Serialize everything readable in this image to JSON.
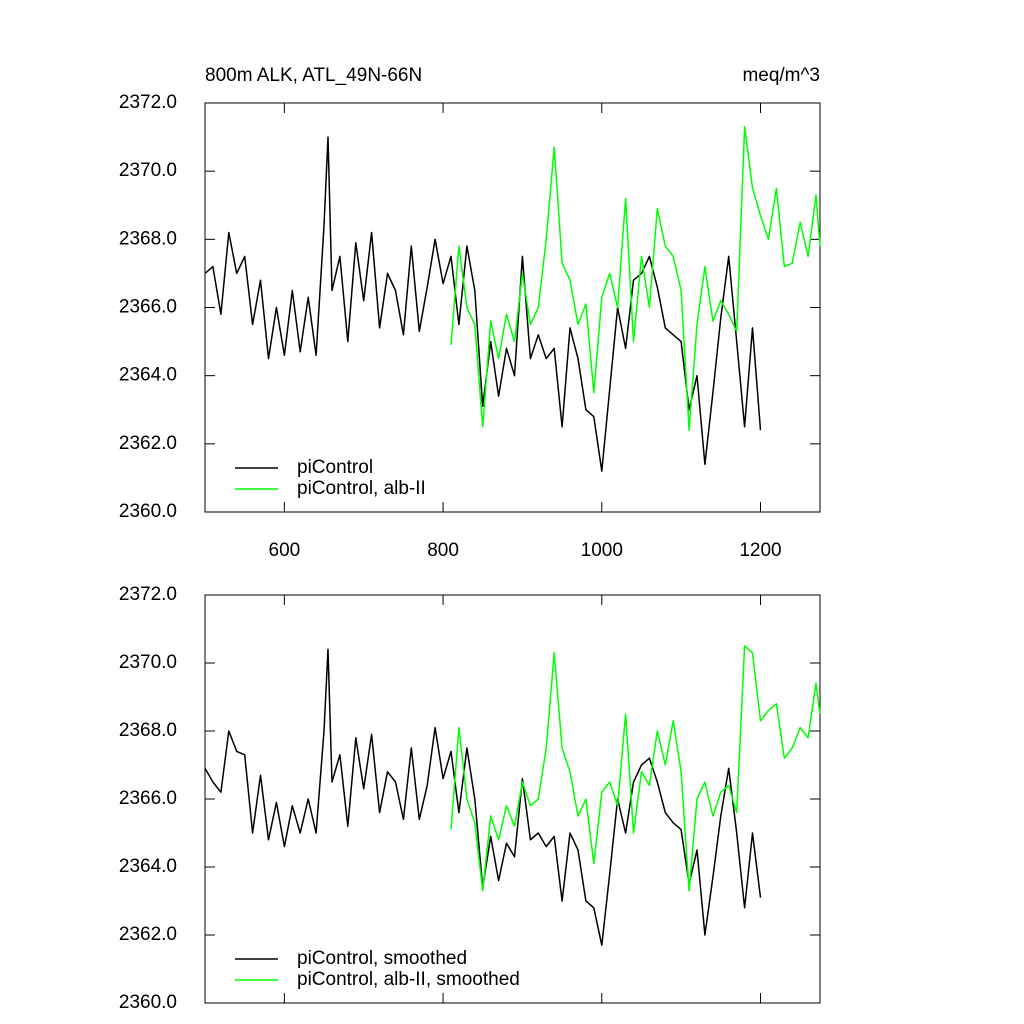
{
  "chart_data": [
    {
      "type": "line",
      "title": "800m ALK, ATL_49N-66N",
      "units": "meq/m^3",
      "xlim": [
        500,
        1275
      ],
      "xticks": [
        600,
        800,
        1000,
        1200
      ],
      "show_xtick_labels": true,
      "ylim": [
        2360,
        2372
      ],
      "yticks": [
        {
          "value": 2360,
          "label": "2360.0"
        },
        {
          "value": 2362,
          "label": "2362.0"
        },
        {
          "value": 2364,
          "label": "2364.0"
        },
        {
          "value": 2366,
          "label": "2366.0"
        },
        {
          "value": 2368,
          "label": "2368.0"
        },
        {
          "value": 2370,
          "label": "2370.0"
        },
        {
          "value": 2372,
          "label": "2372.0"
        }
      ],
      "legend": "lower left",
      "series": [
        {
          "name": "piControl",
          "color": "#000000",
          "x": [
            500,
            510,
            520,
            530,
            540,
            550,
            560,
            570,
            580,
            590,
            600,
            610,
            620,
            630,
            640,
            650,
            655,
            660,
            670,
            680,
            690,
            700,
            710,
            720,
            730,
            740,
            750,
            760,
            770,
            780,
            790,
            800,
            810,
            820,
            830,
            840,
            850,
            860,
            870,
            880,
            890,
            900,
            910,
            920,
            930,
            940,
            950,
            960,
            970,
            980,
            990,
            1000,
            1010,
            1020,
            1030,
            1040,
            1050,
            1060,
            1070,
            1080,
            1090,
            1100,
            1110,
            1120,
            1130,
            1140,
            1150,
            1160,
            1170,
            1180,
            1190,
            1200
          ],
          "values": [
            2367.0,
            2367.2,
            2365.8,
            2368.2,
            2367.0,
            2367.5,
            2365.5,
            2366.8,
            2364.5,
            2366.0,
            2364.6,
            2366.5,
            2364.7,
            2366.3,
            2364.6,
            2368.4,
            2371.0,
            2366.5,
            2367.5,
            2365.0,
            2367.9,
            2366.2,
            2368.2,
            2365.4,
            2367.0,
            2366.5,
            2365.2,
            2367.8,
            2365.3,
            2366.6,
            2368.0,
            2366.7,
            2367.5,
            2365.5,
            2367.8,
            2366.5,
            2363.1,
            2365.0,
            2363.4,
            2364.8,
            2364.0,
            2367.5,
            2364.5,
            2365.2,
            2364.5,
            2364.8,
            2362.5,
            2365.4,
            2364.5,
            2363.0,
            2362.8,
            2361.2,
            2363.6,
            2366.0,
            2364.8,
            2366.8,
            2367.0,
            2367.5,
            2366.6,
            2365.4,
            2365.2,
            2365.0,
            2363.0,
            2364.0,
            2361.4,
            2363.5,
            2365.7,
            2367.5,
            2365.0,
            2362.5,
            2365.4,
            2362.4
          ]
        },
        {
          "name": "piControl, alb-II",
          "color": "#00ff00",
          "x": [
            810,
            820,
            830,
            840,
            850,
            860,
            870,
            880,
            890,
            900,
            910,
            920,
            930,
            940,
            950,
            960,
            970,
            980,
            990,
            1000,
            1010,
            1020,
            1030,
            1040,
            1050,
            1060,
            1070,
            1080,
            1090,
            1100,
            1110,
            1120,
            1130,
            1140,
            1150,
            1160,
            1170,
            1180,
            1190,
            1200,
            1210,
            1220,
            1230,
            1240,
            1250,
            1260,
            1270,
            1275
          ],
          "values": [
            2364.9,
            2367.8,
            2366.0,
            2365.5,
            2362.5,
            2365.6,
            2364.5,
            2365.8,
            2365.0,
            2367.0,
            2365.5,
            2366.0,
            2368.0,
            2370.7,
            2367.3,
            2366.8,
            2365.5,
            2366.1,
            2363.5,
            2366.3,
            2367.0,
            2366.0,
            2369.2,
            2365.0,
            2367.5,
            2366.0,
            2368.9,
            2367.8,
            2367.5,
            2366.5,
            2362.4,
            2365.5,
            2367.2,
            2365.6,
            2366.2,
            2365.8,
            2365.3,
            2371.3,
            2369.5,
            2368.7,
            2368.0,
            2369.5,
            2367.2,
            2367.3,
            2368.5,
            2367.5,
            2369.3,
            2367.8
          ]
        }
      ]
    },
    {
      "type": "line",
      "xlim": [
        500,
        1275
      ],
      "xticks": [
        600,
        800,
        1000,
        1200
      ],
      "show_xtick_labels": false,
      "ylim": [
        2360,
        2372
      ],
      "yticks": [
        {
          "value": 2360,
          "label": "2360.0"
        },
        {
          "value": 2362,
          "label": "2362.0"
        },
        {
          "value": 2364,
          "label": "2364.0"
        },
        {
          "value": 2366,
          "label": "2366.0"
        },
        {
          "value": 2368,
          "label": "2368.0"
        },
        {
          "value": 2370,
          "label": "2370.0"
        },
        {
          "value": 2372,
          "label": "2372.0"
        }
      ],
      "legend": "lower left",
      "series": [
        {
          "name": "piControl, smoothed",
          "color": "#000000",
          "x": [
            500,
            510,
            520,
            530,
            540,
            550,
            560,
            570,
            580,
            590,
            600,
            610,
            620,
            630,
            640,
            650,
            655,
            660,
            670,
            680,
            690,
            700,
            710,
            720,
            730,
            740,
            750,
            760,
            770,
            780,
            790,
            800,
            810,
            820,
            830,
            840,
            850,
            860,
            870,
            880,
            890,
            900,
            910,
            920,
            930,
            940,
            950,
            960,
            970,
            980,
            990,
            1000,
            1010,
            1020,
            1030,
            1040,
            1050,
            1060,
            1070,
            1080,
            1090,
            1100,
            1110,
            1120,
            1130,
            1140,
            1150,
            1160,
            1170,
            1180,
            1190,
            1200
          ],
          "values": [
            2366.9,
            2366.5,
            2366.2,
            2368.0,
            2367.4,
            2367.3,
            2365.0,
            2366.7,
            2364.8,
            2365.9,
            2364.6,
            2365.8,
            2365.0,
            2366.0,
            2365.0,
            2368.0,
            2370.4,
            2366.5,
            2367.3,
            2365.2,
            2367.8,
            2366.3,
            2367.9,
            2365.6,
            2366.8,
            2366.5,
            2365.4,
            2367.5,
            2365.4,
            2366.4,
            2368.1,
            2366.6,
            2367.4,
            2365.6,
            2367.5,
            2366.0,
            2363.4,
            2364.9,
            2363.6,
            2364.7,
            2364.3,
            2366.6,
            2364.8,
            2365.0,
            2364.6,
            2364.9,
            2363.0,
            2365.0,
            2364.5,
            2363.0,
            2362.8,
            2361.7,
            2363.8,
            2366.0,
            2365.0,
            2366.5,
            2367.0,
            2367.2,
            2366.5,
            2365.6,
            2365.3,
            2365.1,
            2363.5,
            2364.5,
            2362.0,
            2363.7,
            2365.5,
            2366.9,
            2365.0,
            2362.8,
            2365.0,
            2363.1
          ]
        },
        {
          "name": "piControl, alb-II, smoothed",
          "color": "#00ff00",
          "x": [
            810,
            820,
            830,
            840,
            850,
            860,
            870,
            880,
            890,
            900,
            910,
            920,
            930,
            940,
            950,
            960,
            970,
            980,
            990,
            1000,
            1010,
            1020,
            1030,
            1040,
            1050,
            1060,
            1070,
            1080,
            1090,
            1100,
            1110,
            1120,
            1130,
            1140,
            1150,
            1160,
            1170,
            1180,
            1190,
            1200,
            1210,
            1220,
            1230,
            1240,
            1250,
            1260,
            1270,
            1275
          ],
          "values": [
            2365.1,
            2368.1,
            2366.0,
            2365.3,
            2363.3,
            2365.5,
            2364.8,
            2365.8,
            2365.2,
            2366.5,
            2365.8,
            2366.0,
            2367.5,
            2370.3,
            2367.5,
            2366.8,
            2365.5,
            2366.0,
            2364.1,
            2366.2,
            2366.5,
            2365.8,
            2368.5,
            2365.0,
            2366.8,
            2366.4,
            2368.0,
            2367.0,
            2368.3,
            2366.8,
            2363.3,
            2366.0,
            2366.5,
            2365.5,
            2366.2,
            2366.4,
            2365.6,
            2370.5,
            2370.3,
            2368.3,
            2368.6,
            2368.8,
            2367.2,
            2367.5,
            2368.1,
            2367.8,
            2369.4,
            2368.5
          ]
        }
      ]
    }
  ]
}
